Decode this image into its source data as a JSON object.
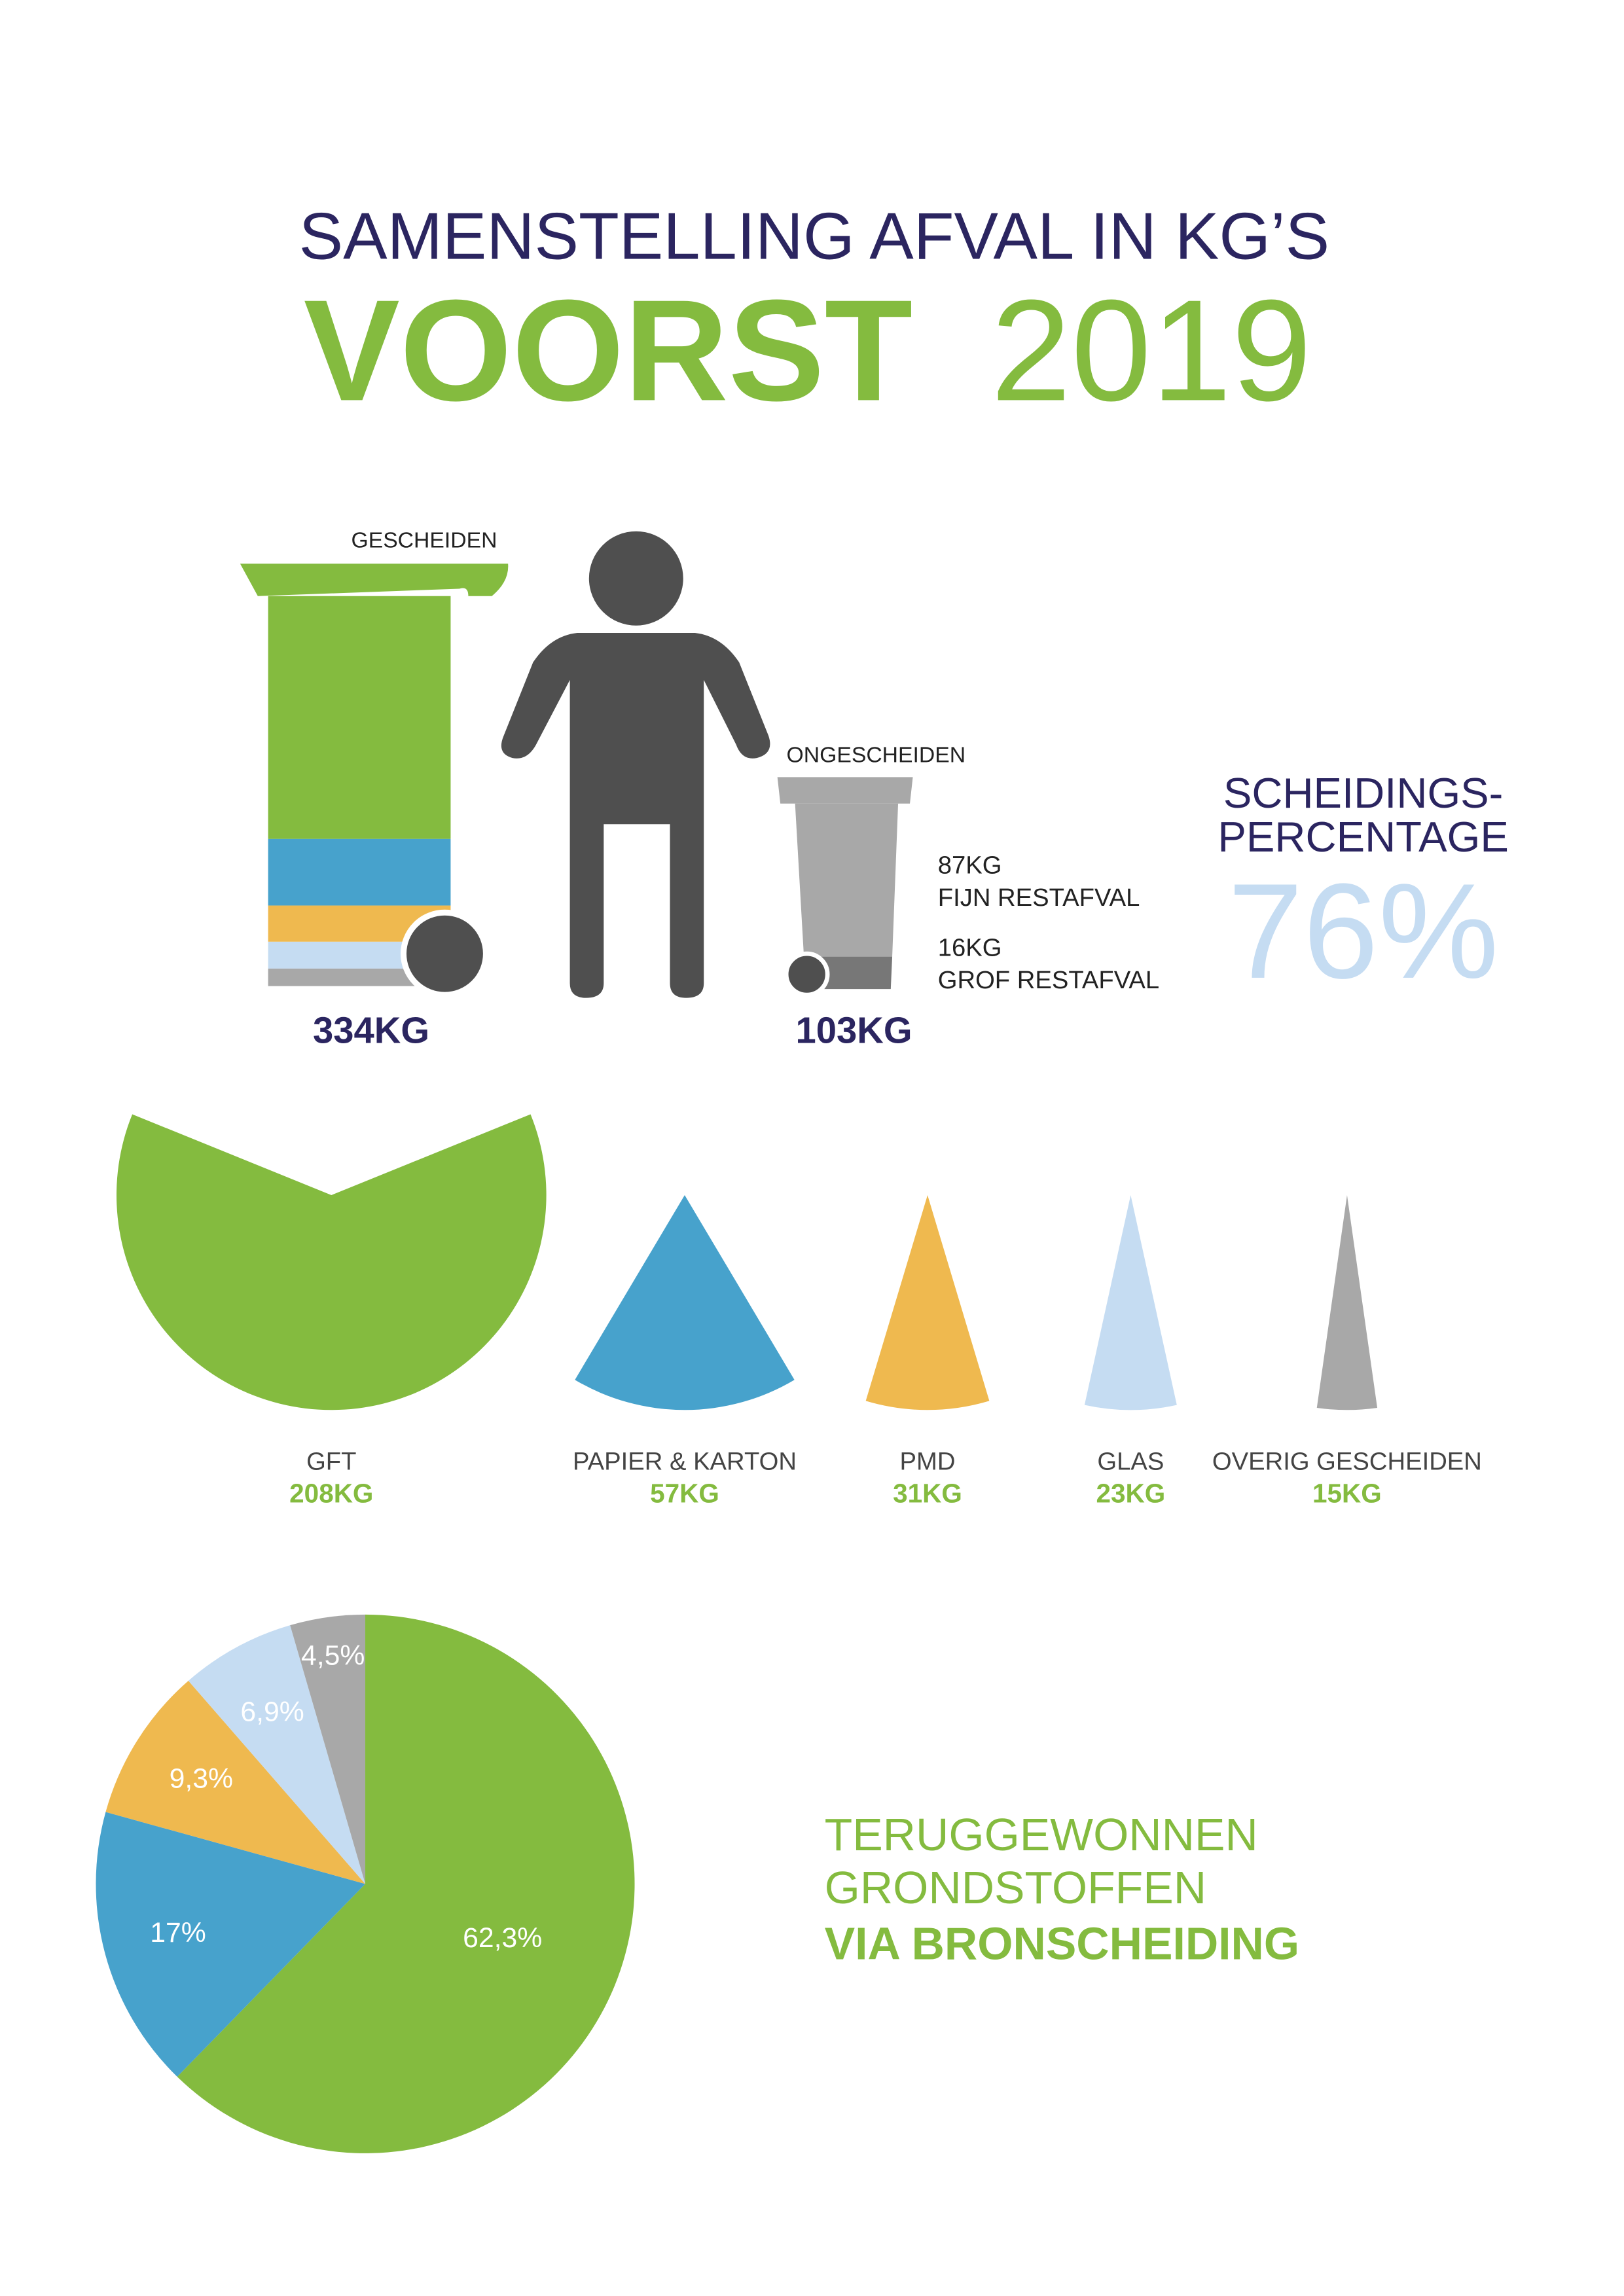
{
  "header": {
    "title": "SAMENSTELLING AFVAL IN KG’S",
    "place": "VOORST",
    "year": "2019"
  },
  "bins": {
    "sorted_label": "GESCHEIDEN",
    "sorted_total": "334KG",
    "unsorted_label": "ONGESCHEIDEN",
    "unsorted_total": "103KG",
    "fine_amount": "87KG",
    "fine_label": "FIJN RESTAFVAL",
    "coarse_amount": "16KG",
    "coarse_label": "GROF RESTAFVAL"
  },
  "separation": {
    "label_1": "SCHEIDINGS-",
    "label_2": "PERCENTAGE",
    "value": "76%"
  },
  "chart_data": [
    {
      "type": "sectors",
      "categories": [
        "GFT",
        "PAPIER & KARTON",
        "PMD",
        "GLAS",
        "OVERIG GESCHEIDEN"
      ],
      "values": [
        208,
        57,
        31,
        23,
        15
      ],
      "value_labels": [
        "208KG",
        "57KG",
        "31KG",
        "23KG",
        "15KG"
      ],
      "colors": [
        "#84bb3f",
        "#47a2cc",
        "#efb94f",
        "#c5dcf2",
        "#a8a8a8"
      ]
    },
    {
      "type": "pie",
      "title_lines": [
        "TERUGGEWONNEN",
        "GRONDSTOFFEN"
      ],
      "title_bold": "VIA BRONSCHEIDING",
      "values": [
        62.3,
        17,
        9.3,
        6.9,
        4.5
      ],
      "value_labels": [
        "62,3%",
        "17%",
        "9,3%",
        "6,9%",
        "4,5%"
      ],
      "colors": [
        "#84bb3f",
        "#47a2cc",
        "#efb94f",
        "#c5dcf2",
        "#a8a8a8"
      ]
    }
  ]
}
